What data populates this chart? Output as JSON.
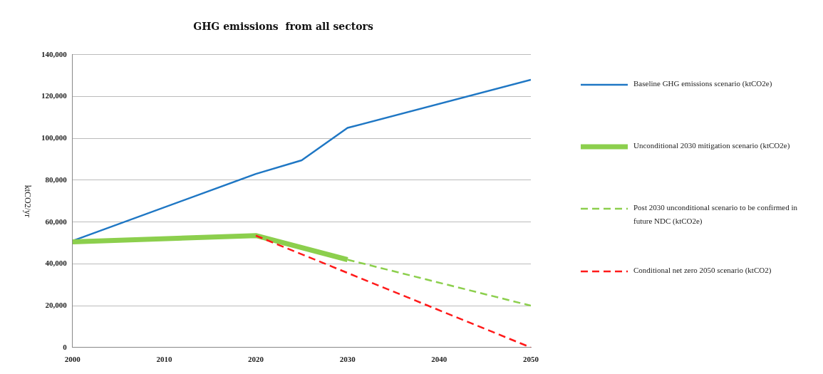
{
  "chart_data": {
    "type": "line",
    "title": "GHG emissions  from all sectors",
    "ylabel": "ktCO2/yr",
    "xlim": [
      2000,
      2050
    ],
    "xticks": [
      2000,
      2010,
      2020,
      2030,
      2040,
      2050
    ],
    "ylim": [
      0,
      140000
    ],
    "yticks": [
      {
        "value": 0,
        "label": "0"
      },
      {
        "value": 20000,
        "label": "20,000"
      },
      {
        "value": 40000,
        "label": "40,000"
      },
      {
        "value": 60000,
        "label": "60,000"
      },
      {
        "value": 80000,
        "label": "80,000"
      },
      {
        "value": 100000,
        "label": "100,000"
      },
      {
        "value": 120000,
        "label": "120,000"
      },
      {
        "value": 140000,
        "label": "140,000"
      }
    ],
    "grid": "y",
    "legend": "right",
    "marker": "none",
    "series": [
      {
        "name": "Baseline GHG emissions scenario (ktCO2e)",
        "color": "#1f77c4",
        "line_style": "solid",
        "x": [
          2000,
          2020,
          2025,
          2030,
          2050
        ],
        "values": [
          51000,
          83000,
          89500,
          105000,
          128000
        ]
      },
      {
        "name": "Unconditional 2030 mitigation scenario (ktCO2e)",
        "color": "#8ccf4d",
        "line_style": "solid",
        "x": [
          2000,
          2020,
          2030
        ],
        "values": [
          50500,
          53500,
          42000
        ]
      },
      {
        "name": "Post 2030 unconditional scenario to be confirmed in future NDC (ktCO2e)",
        "color": "#8ccf4d",
        "line_style": "dashed",
        "x": [
          2030,
          2050
        ],
        "values": [
          42000,
          20000
        ]
      },
      {
        "name": "Conditional net zero 2050 scenario (ktCO2)",
        "color": "#ff1a1a",
        "line_style": "dashed",
        "x": [
          2020,
          2050
        ],
        "values": [
          53500,
          0
        ]
      }
    ]
  }
}
